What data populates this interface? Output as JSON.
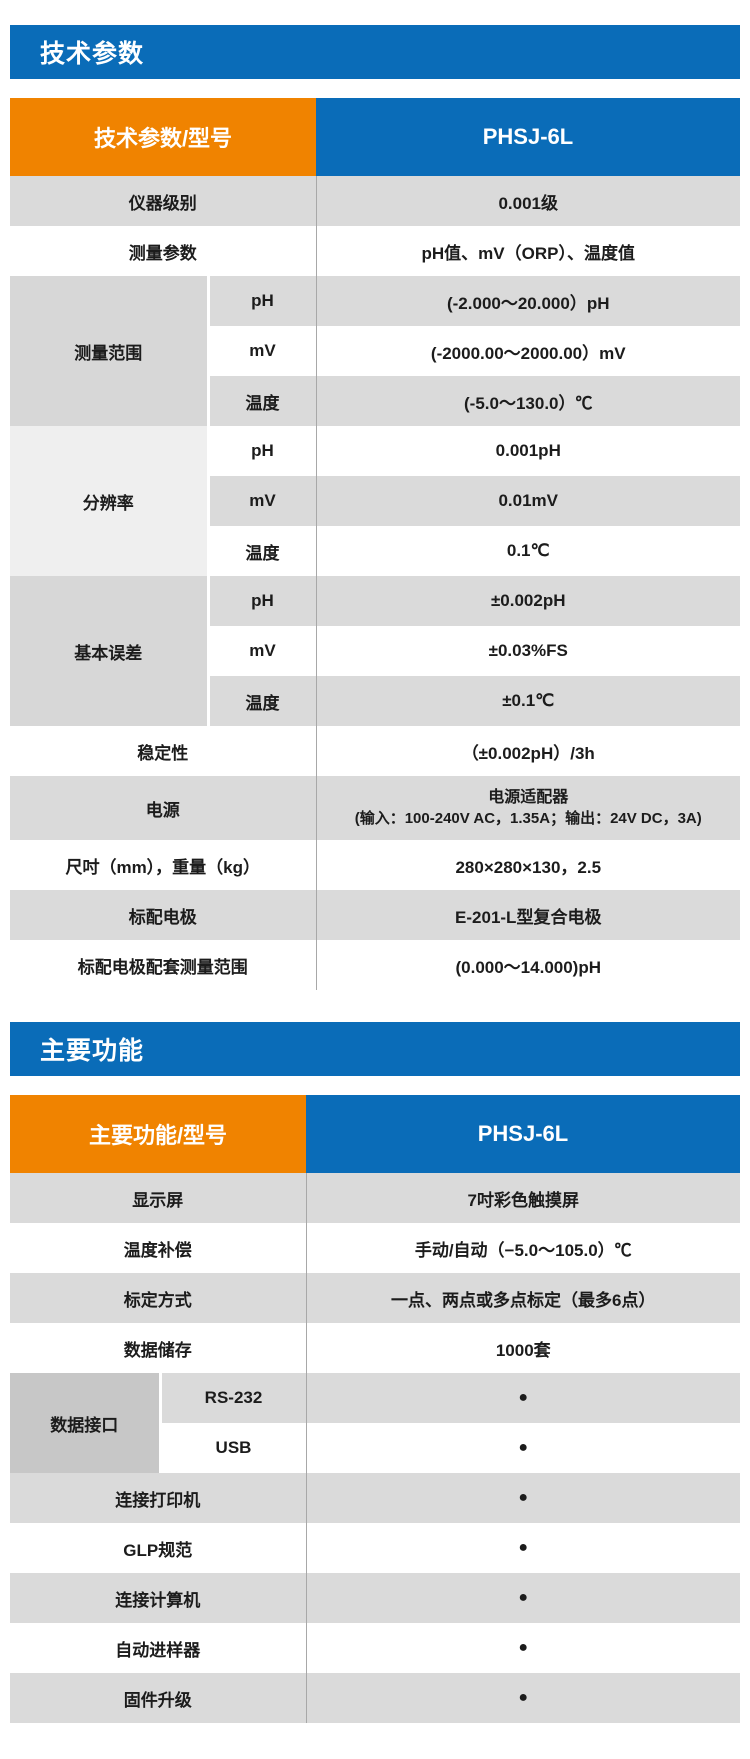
{
  "theme": {
    "accent_blue": "#0a6cb8",
    "accent_orange": "#f08300",
    "row_gray": "#dadada",
    "group_dark_gray": "#c7c7c7",
    "group_light_gray": "#efefef"
  },
  "sections": [
    {
      "banner": "技术参数",
      "header": {
        "label": "技术参数/型号",
        "model": "PHSJ-6L"
      },
      "rows": [
        {
          "label": "仪器级别",
          "value": "0.001级",
          "shade": "gray"
        },
        {
          "label": "测量参数",
          "value": "pH值、mV（ORP）、温度值",
          "shade": "white"
        },
        {
          "group": "测量范围",
          "group_shade": "gray",
          "subs": [
            {
              "label": "pH",
              "value": "(-2.000～20.000）pH",
              "shade": "gray"
            },
            {
              "label": "mV",
              "value": "(-2000.00～2000.00）mV",
              "shade": "white"
            },
            {
              "label": "温度",
              "value": "(-5.0～130.0）℃",
              "shade": "gray"
            }
          ]
        },
        {
          "group": "分辨率",
          "group_shade": "light",
          "subs": [
            {
              "label": "pH",
              "value": "0.001pH",
              "shade": "white"
            },
            {
              "label": "mV",
              "value": "0.01mV",
              "shade": "gray"
            },
            {
              "label": "温度",
              "value": "0.1℃",
              "shade": "white"
            }
          ]
        },
        {
          "group": "基本误差",
          "group_shade": "gray",
          "subs": [
            {
              "label": "pH",
              "value": "±0.002pH",
              "shade": "gray"
            },
            {
              "label": "mV",
              "value": "±0.03%FS",
              "shade": "white"
            },
            {
              "label": "温度",
              "value": "±0.1℃",
              "shade": "gray"
            }
          ]
        },
        {
          "label": "稳定性",
          "value": "（±0.002pH）/3h",
          "shade": "white"
        },
        {
          "label": "电源",
          "value_lines": [
            "电源适配器",
            "(输入：100-240V AC，1.35A；输出：24V DC，3A)"
          ],
          "shade": "gray",
          "tall": true
        },
        {
          "label": "尺吋（mm），重量（kg）",
          "value": "280×280×130，2.5",
          "shade": "white"
        },
        {
          "label": "标配电极",
          "value": "E-201-L型复合电极",
          "shade": "gray"
        },
        {
          "label": "标配电极配套测量范围",
          "value": "(0.000～14.000)pH",
          "shade": "white"
        }
      ]
    },
    {
      "banner": "主要功能",
      "header": {
        "label": "主要功能/型号",
        "model": "PHSJ-6L"
      },
      "rows": [
        {
          "label": "显示屏",
          "value": "7吋彩色触摸屏",
          "shade": "gray"
        },
        {
          "label": "温度补偿",
          "value": "手动/自动（−5.0～105.0）℃",
          "shade": "white"
        },
        {
          "label": "标定方式",
          "value": "一点、两点或多点标定（最多6点）",
          "shade": "gray"
        },
        {
          "label": "数据储存",
          "value": "1000套",
          "shade": "white"
        },
        {
          "group": "数据接口",
          "group_shade": "dark",
          "subs": [
            {
              "label": "RS-232",
              "value": "●",
              "shade": "gray",
              "dot": true
            },
            {
              "label": "USB",
              "value": "●",
              "shade": "white",
              "dot": true
            }
          ]
        },
        {
          "label": "连接打印机",
          "value": "●",
          "shade": "gray",
          "dot": true
        },
        {
          "label": "GLP规范",
          "value": "●",
          "shade": "white",
          "dot": true
        },
        {
          "label": "连接计算机",
          "value": "●",
          "shade": "gray",
          "dot": true
        },
        {
          "label": "自动进样器",
          "value": "●",
          "shade": "white",
          "dot": true
        },
        {
          "label": "固件升级",
          "value": "●",
          "shade": "gray",
          "dot": true
        }
      ]
    }
  ]
}
